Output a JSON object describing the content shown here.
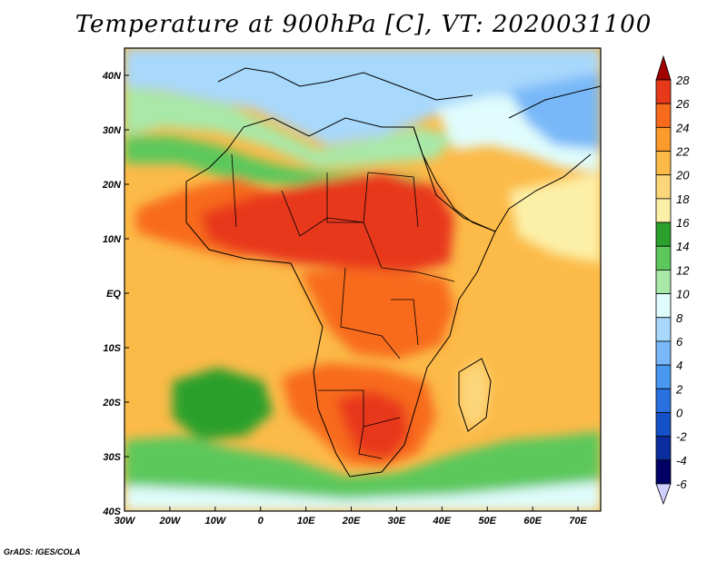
{
  "title": "Temperature at 900hPa [C], VT: 2020031100",
  "credit": "GrADS: IGES/COLA",
  "map": {
    "projection": "latlon",
    "lon_range": [
      -30,
      75
    ],
    "lat_range": [
      -40,
      45
    ],
    "lon_ticks": [
      {
        "value": -30,
        "label": "30W"
      },
      {
        "value": -20,
        "label": "20W"
      },
      {
        "value": -10,
        "label": "10W"
      },
      {
        "value": 0,
        "label": "0"
      },
      {
        "value": 10,
        "label": "10E"
      },
      {
        "value": 20,
        "label": "20E"
      },
      {
        "value": 30,
        "label": "30E"
      },
      {
        "value": 40,
        "label": "40E"
      },
      {
        "value": 50,
        "label": "50E"
      },
      {
        "value": 60,
        "label": "60E"
      },
      {
        "value": 70,
        "label": "70E"
      }
    ],
    "lat_ticks": [
      {
        "value": 40,
        "label": "40N"
      },
      {
        "value": 30,
        "label": "30N"
      },
      {
        "value": 20,
        "label": "20N"
      },
      {
        "value": 10,
        "label": "10N"
      },
      {
        "value": 0,
        "label": "EQ"
      },
      {
        "value": -10,
        "label": "10S"
      },
      {
        "value": -20,
        "label": "20S"
      },
      {
        "value": -30,
        "label": "30S"
      },
      {
        "value": -40,
        "label": "40S"
      }
    ],
    "regions": [
      {
        "name": "ocean-base",
        "level": 20
      },
      {
        "name": "europe-north",
        "level": 6
      },
      {
        "name": "mediterranean",
        "level": 10
      },
      {
        "name": "north-africa-coast",
        "level": 12
      },
      {
        "name": "middle-east",
        "level": 8
      },
      {
        "name": "iran-central-asia",
        "level": 4
      },
      {
        "name": "arabian-sea",
        "level": 16
      },
      {
        "name": "sahel-west",
        "level": 24
      },
      {
        "name": "sahel-central",
        "level": 26
      },
      {
        "name": "sudan-core",
        "level": 27
      },
      {
        "name": "equatorial-africa",
        "level": 24
      },
      {
        "name": "east-africa-hot",
        "level": 25
      },
      {
        "name": "southern-africa",
        "level": 24
      },
      {
        "name": "kalahari-core",
        "level": 27
      },
      {
        "name": "south-atlantic-cool",
        "level": 14
      },
      {
        "name": "southern-ocean",
        "level": 12
      },
      {
        "name": "southern-ocean-far",
        "level": 8
      },
      {
        "name": "madagascar",
        "level": 18
      }
    ]
  },
  "colorbar": {
    "levels": [
      28,
      26,
      24,
      22,
      20,
      18,
      16,
      14,
      12,
      10,
      8,
      6,
      4,
      2,
      0,
      -2,
      -4,
      -6
    ],
    "colors": [
      "#a00000",
      "#e8381a",
      "#f86a1c",
      "#fc9a2c",
      "#fcba48",
      "#fcd67a",
      "#fcf0a8",
      "#2ca02c",
      "#5cc85c",
      "#a8e8a8",
      "#e0fcfc",
      "#a8d8fc",
      "#78b8f8",
      "#4898f0",
      "#2870e0",
      "#1450c8",
      "#0a2c9c",
      "#000066",
      "#d0d0ff"
    ]
  }
}
